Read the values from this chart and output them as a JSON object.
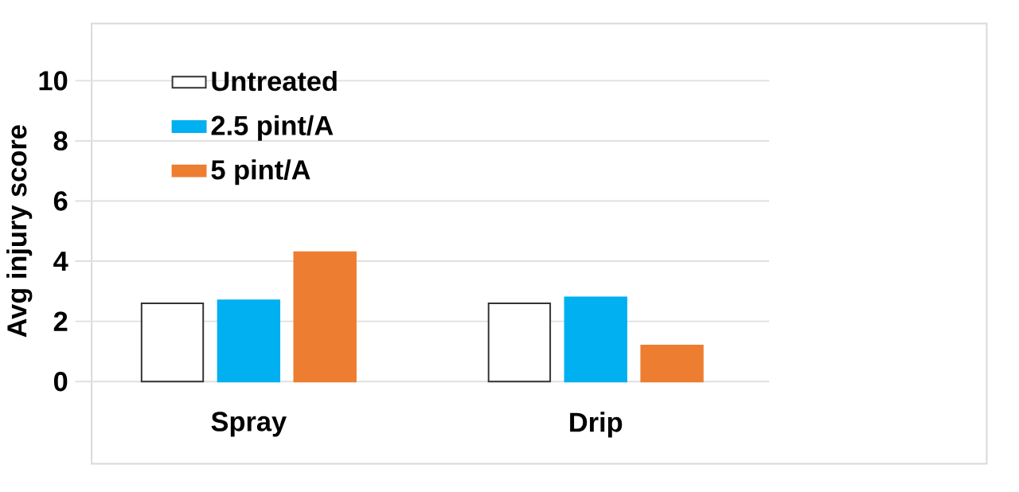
{
  "chart_data": {
    "type": "bar",
    "ylabel": "Avg injury score",
    "categories": [
      "Spray",
      "Drip"
    ],
    "series": [
      {
        "name": "Untreated",
        "color": "#ffffff",
        "values": [
          2.6,
          2.6
        ]
      },
      {
        "name": "2.5 pint/A",
        "color": "#00b0f0",
        "values": [
          2.7,
          2.8
        ]
      },
      {
        "name": "5 pint/A",
        "color": "#ed7d31",
        "values": [
          4.3,
          1.2
        ]
      }
    ],
    "ylim": [
      0,
      10
    ],
    "yticks": [
      0,
      2,
      4,
      6,
      8,
      10
    ],
    "grid": "y",
    "legend": "top left"
  }
}
